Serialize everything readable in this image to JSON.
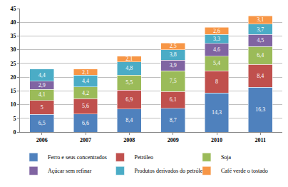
{
  "chart_data": {
    "type": "bar",
    "stacked": true,
    "data_labels": true,
    "grid": true,
    "legend": "bottom",
    "categories": [
      "2006",
      "2007",
      "2008",
      "2009",
      "2010",
      "2011"
    ],
    "ylim": [
      0,
      45
    ],
    "yticks": [
      0,
      5,
      10,
      15,
      20,
      25,
      30,
      35,
      40,
      45
    ],
    "series": [
      {
        "name": "Ferro e seus concentrados",
        "color": "#4f81bd",
        "values": [
          6.5,
          6.6,
          8.4,
          8.7,
          14.3,
          16.3
        ],
        "value_labels": [
          "6,5",
          "6,6",
          "8,4",
          "8,7",
          "14,3",
          "16,3"
        ]
      },
      {
        "name": "Petróleo",
        "color": "#c0504d",
        "values": [
          5,
          5.6,
          6.9,
          6.1,
          8,
          8.4
        ],
        "value_labels": [
          "5",
          "5,6",
          "6,9",
          "6,1",
          "8",
          "8,4"
        ]
      },
      {
        "name": "Soja",
        "color": "#9bbb59",
        "values": [
          4.1,
          4.2,
          5.5,
          7.5,
          5.4,
          6.4
        ],
        "value_labels": [
          "4,1",
          "4,2",
          "5,5",
          "7,5",
          "5,4",
          "6,4"
        ]
      },
      {
        "name": "Açúcar sem refinar",
        "color": "#8064a2",
        "values": [
          2.9,
          null,
          null,
          3.9,
          4.6,
          4.5
        ],
        "value_labels": [
          "2,9",
          null,
          null,
          "3,9",
          "4,6",
          "4,5"
        ]
      },
      {
        "name": "Produtos derivados do petróleo",
        "color": "#4bacc6",
        "values": [
          4.4,
          4.4,
          4.8,
          3.8,
          3.3,
          3.7
        ],
        "value_labels": [
          "4,4",
          "4,4",
          "4,8",
          "3,8",
          "3,3",
          "3,7"
        ]
      },
      {
        "name": "Café verde o tostado",
        "color": "#f79646",
        "values": [
          null,
          2.1,
          2.1,
          2.5,
          2.6,
          3.1
        ],
        "value_labels": [
          null,
          "2,1",
          "2,1",
          "2,5",
          "2,6",
          "3,1"
        ]
      }
    ]
  }
}
